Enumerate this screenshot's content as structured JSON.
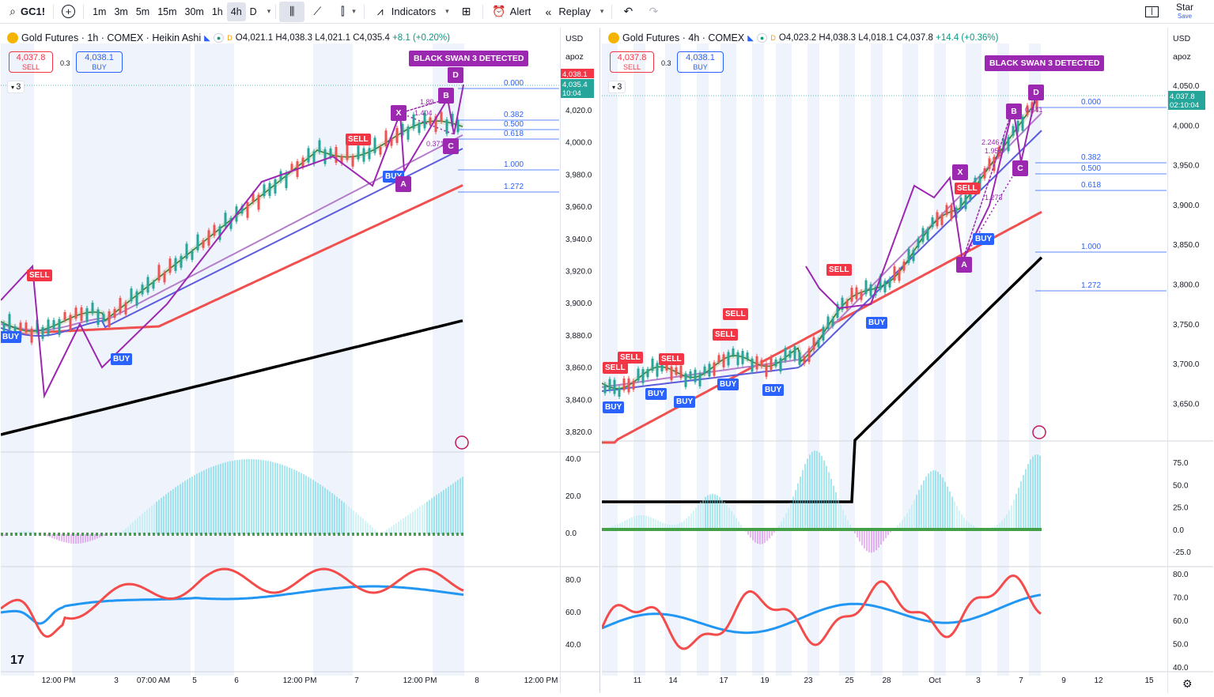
{
  "topbar": {
    "symbol": "GC1!",
    "timeframes": [
      "1m",
      "3m",
      "5m",
      "15m",
      "30m",
      "1h",
      "4h",
      "D"
    ],
    "active_timeframe": "4h",
    "indicators_label": "Indicators",
    "alert_label": "Alert",
    "replay_label": "Replay",
    "star_label": "Star",
    "save_label": "Save"
  },
  "left": {
    "title": "Gold Futures · 1h · COMEX · Heikin Ashi",
    "ohlc": {
      "o": "O4,021.1",
      "h": "H4,038.3",
      "l": "L4,021.1",
      "c": "C4,035.4",
      "chg": "+8.1 (+0.20%)"
    },
    "sell": {
      "price": "4,037.8",
      "label": "SELL"
    },
    "spread": "0.3",
    "buy": {
      "price": "4,038.1",
      "label": "BUY"
    },
    "collapse": "3",
    "currency": "USD",
    "scale": "apoz",
    "price_tag_red": "4,038.1",
    "price_tag_green": "4,035.4",
    "price_tag_time": "10:04",
    "black_swan": "BLACK SWAN 3 DETECTED",
    "fib": [
      "0.000",
      "0.382",
      "0.500",
      "0.618",
      "1.000",
      "1.272"
    ],
    "ratios": [
      "1.89",
      "1.404",
      "0.371"
    ],
    "points": [
      "X",
      "A",
      "B",
      "C",
      "D"
    ],
    "y_ticks": [
      "4,020.0",
      "4,000.0",
      "3,980.0",
      "3,960.0",
      "3,940.0",
      "3,920.0",
      "3,900.0",
      "3,880.0",
      "3,860.0",
      "3,840.0",
      "3,820.0"
    ],
    "osc_ticks": [
      "40.0",
      "20.0",
      "0.0"
    ],
    "rsi_ticks": [
      "80.0",
      "60.0",
      "40.0"
    ],
    "x_ticks": [
      "12:00 PM",
      "3",
      "07:00 AM",
      "5",
      "6",
      "12:00 PM",
      "7",
      "12:00 PM",
      "8",
      "12:00 PM"
    ],
    "sell_labels": [
      "SELL",
      "SELL"
    ],
    "buy_labels": [
      "BUY",
      "BUY",
      "BUY"
    ]
  },
  "right": {
    "title": "Gold Futures · 4h · COMEX",
    "ohlc": {
      "o": "O4,023.2",
      "h": "H4,038.3",
      "l": "L4,018.1",
      "c": "C4,037.8",
      "chg": "+14.4 (+0.36%)"
    },
    "sell": {
      "price": "4,037.8",
      "label": "SELL"
    },
    "spread": "0.3",
    "buy": {
      "price": "4,038.1",
      "label": "BUY"
    },
    "collapse": "3",
    "currency": "USD",
    "scale": "apoz",
    "price_tag_green": "4,037.8",
    "price_tag_time": "02:10:04",
    "black_swan": "BLACK SWAN 3 DETECTED",
    "fib": [
      "0.000",
      "0.382",
      "0.500",
      "0.618",
      "1.000",
      "1.272"
    ],
    "ratios": [
      "2.246",
      "1.951",
      "1.273",
      "0.641"
    ],
    "points": [
      "X",
      "A",
      "B",
      "C",
      "D"
    ],
    "y_ticks": [
      "4,050.0",
      "4,000.0",
      "3,950.0",
      "3,900.0",
      "3,850.0",
      "3,800.0",
      "3,750.0",
      "3,700.0",
      "3,650.0"
    ],
    "osc_ticks": [
      "75.0",
      "50.0",
      "25.0",
      "0.0",
      "-25.0"
    ],
    "rsi_ticks": [
      "80.0",
      "70.0",
      "60.0",
      "50.0",
      "40.0"
    ],
    "x_ticks": [
      "11",
      "14",
      "17",
      "19",
      "23",
      "25",
      "28",
      "Oct",
      "3",
      "7",
      "9",
      "12",
      "15"
    ],
    "sell_labels": [
      "SELL",
      "SELL",
      "SELL",
      "SELL",
      "SELL",
      "SELL",
      "SELL"
    ],
    "buy_labels": [
      "BUY",
      "BUY",
      "BUY",
      "BUY",
      "BUY",
      "BUY",
      "BUY"
    ]
  },
  "colors": {
    "sell": "#f23645",
    "buy": "#2962ff",
    "swan": "#9c27b0",
    "fib": "#2962ff",
    "ema_red": "#f0504f",
    "ema_black": "#000000"
  }
}
